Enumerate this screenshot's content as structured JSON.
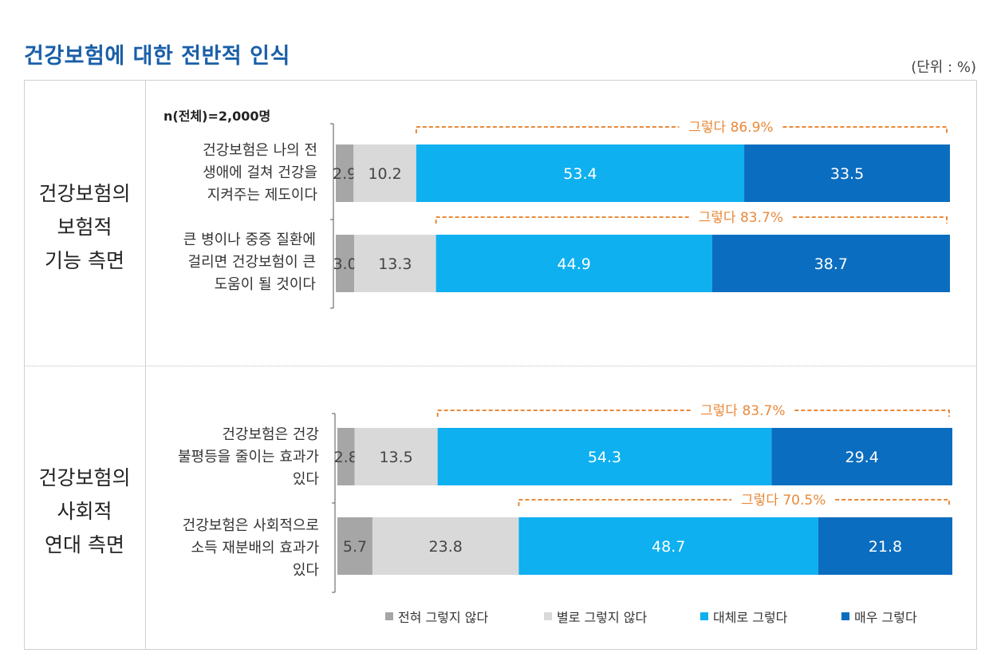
{
  "title": "건강보험에 대한 전반적 인식",
  "unit": "(단위 : %)",
  "sample": "n(전체)=2,000명",
  "sections": [
    {
      "lines": [
        "건강보험의",
        "보험적",
        "기능 측면"
      ]
    },
    {
      "lines": [
        "건강보험의",
        "사회적",
        "연대 측면"
      ]
    }
  ],
  "colors": {
    "strongly_disagree": "#a6a6a6",
    "disagree": "#d9d9d9",
    "agree": "#0eb0ef",
    "strongly_agree": "#0b6dbf",
    "bracket": "#e9893a"
  },
  "chart_data": {
    "type": "bar",
    "orientation": "horizontal",
    "stacked": true,
    "categories": [
      "건강보험은 나의 전 생애에 걸쳐 건강을 지켜주는 제도이다",
      "큰 병이나 중증 질환에 걸리면 건강보험이 큰 도움이 될 것이다",
      "건강보험은 건강 불평등을 줄이는 효과가 있다",
      "건강보험은 사회적으로 소득 재분배의 효과가 있다"
    ],
    "category_lines": [
      [
        "건강보험은 나의 전",
        "생애에 걸쳐 건강을",
        "지켜주는 제도이다"
      ],
      [
        "큰 병이나 중증 질환에",
        "걸리면 건강보험이 큰",
        "도움이 될 것이다"
      ],
      [
        "건강보험은 건강",
        "불평등을 줄이는 효과가",
        "있다"
      ],
      [
        "건강보험은 사회적으로",
        "소득 재분배의 효과가",
        "있다"
      ]
    ],
    "series": [
      {
        "name": "전혀 그렇지 않다",
        "values": [
          2.9,
          3.0,
          2.8,
          5.7
        ]
      },
      {
        "name": "별로 그렇지 않다",
        "values": [
          10.2,
          13.3,
          13.5,
          23.8
        ]
      },
      {
        "name": "대체로 그렇다",
        "values": [
          53.4,
          44.9,
          54.3,
          48.7
        ]
      },
      {
        "name": "매우 그렇다",
        "values": [
          33.5,
          38.7,
          29.4,
          21.8
        ]
      }
    ],
    "value_labels": [
      [
        "2.9",
        "10.2",
        "53.4",
        "33.5"
      ],
      [
        "3.0",
        "13.3",
        "44.9",
        "38.7"
      ],
      [
        "2.8",
        "13.5",
        "54.3",
        "29.4"
      ],
      [
        "5.7",
        "23.8",
        "48.7",
        "21.8"
      ]
    ],
    "agree_totals": [
      "그렇다 86.9%",
      "그렇다 83.7%",
      "그렇다 83.7%",
      "그렇다 70.5%"
    ],
    "xlim": [
      0,
      100
    ],
    "unit": "%"
  }
}
